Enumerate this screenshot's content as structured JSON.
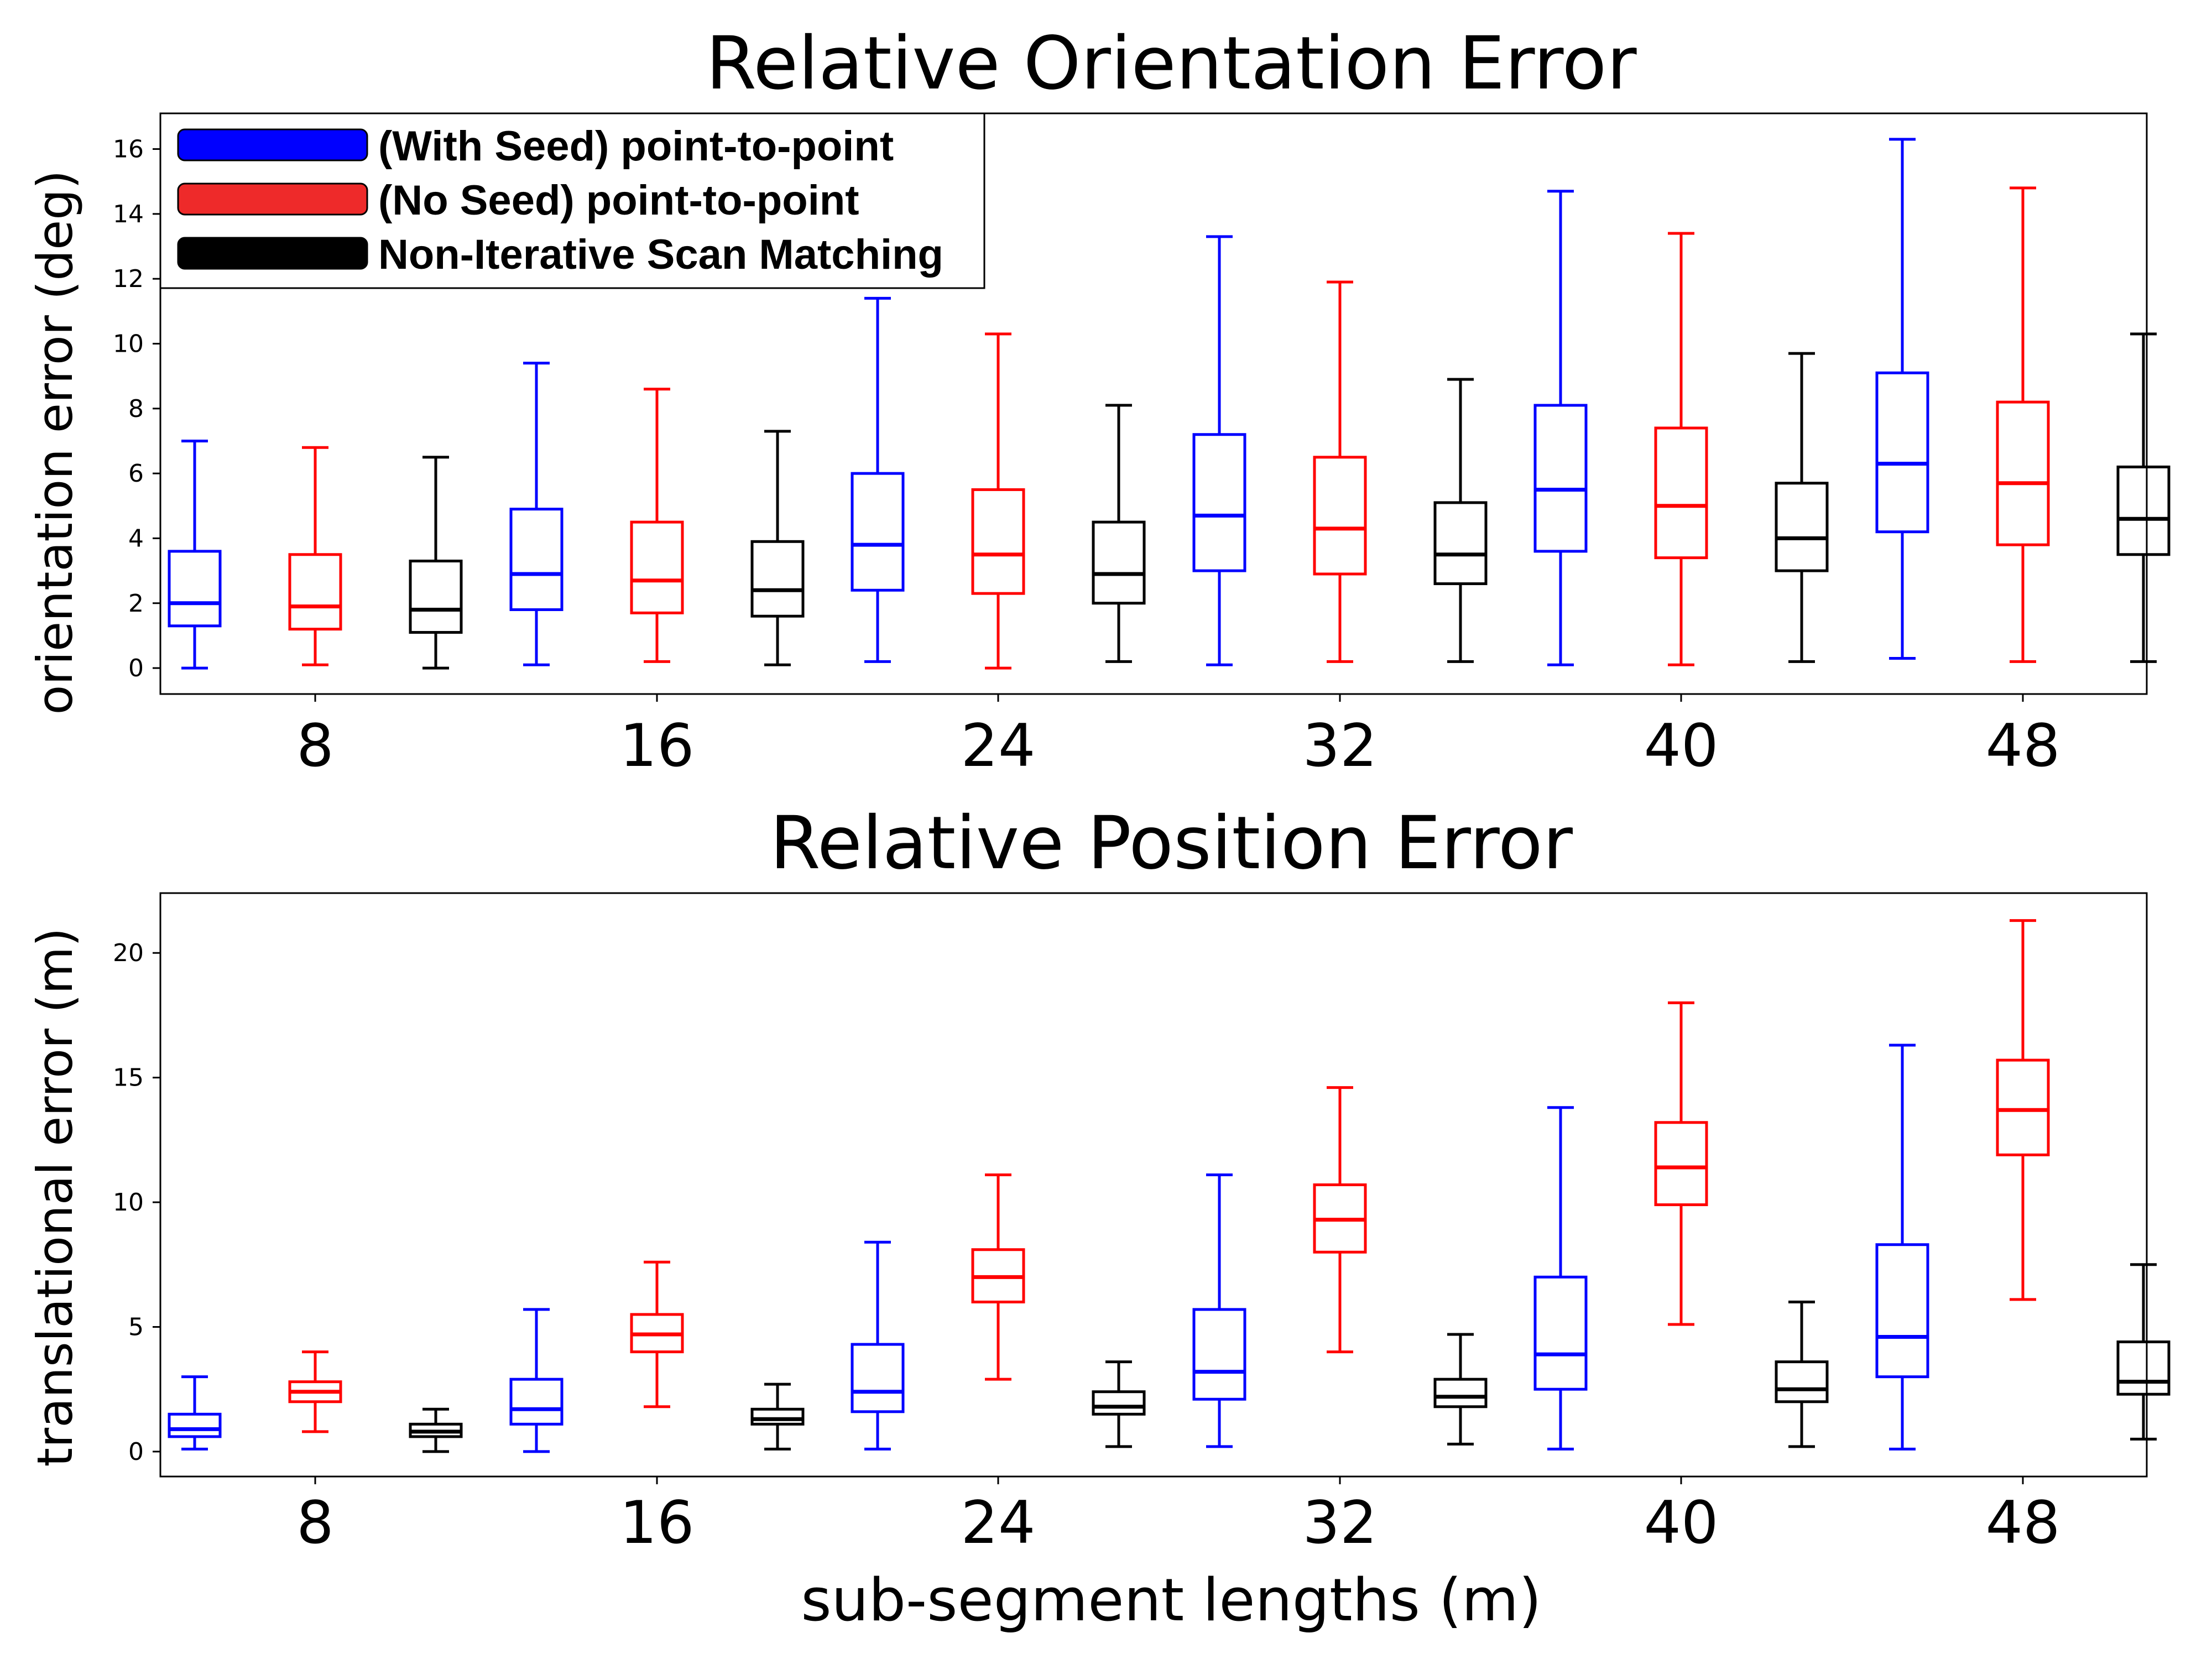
{
  "chart_data": [
    {
      "type": "box",
      "title": "Relative Orientation Error",
      "ylabel": "orientation error (deg)",
      "xlabel": "",
      "ylim": [
        -0.8,
        17.1
      ],
      "yticks": [
        0,
        2,
        4,
        6,
        8,
        10,
        12,
        14,
        16
      ],
      "categories": [
        "8",
        "16",
        "24",
        "32",
        "40",
        "48"
      ],
      "legend": {
        "placement": "top-left",
        "entries": [
          {
            "label": "(With Seed) point-to-point",
            "color": "#0000ff"
          },
          {
            "label": "(No Seed) point-to-point",
            "color": "#ff0000"
          },
          {
            "label": "Non-Iterative Scan Matching",
            "color": "#000000"
          }
        ]
      },
      "series": [
        {
          "name": "(With Seed) point-to-point",
          "color": "#0000ff",
          "boxes": [
            {
              "min": 0.0,
              "q1": 1.3,
              "median": 2.0,
              "q3": 3.6,
              "max": 7.0
            },
            {
              "min": 0.1,
              "q1": 1.8,
              "median": 2.9,
              "q3": 4.9,
              "max": 9.4
            },
            {
              "min": 0.2,
              "q1": 2.4,
              "median": 3.8,
              "q3": 6.0,
              "max": 11.4
            },
            {
              "min": 0.1,
              "q1": 3.0,
              "median": 4.7,
              "q3": 7.2,
              "max": 13.3
            },
            {
              "min": 0.1,
              "q1": 3.6,
              "median": 5.5,
              "q3": 8.1,
              "max": 14.7
            },
            {
              "min": 0.3,
              "q1": 4.2,
              "median": 6.3,
              "q3": 9.1,
              "max": 16.3
            }
          ]
        },
        {
          "name": "(No Seed) point-to-point",
          "color": "#ff0000",
          "boxes": [
            {
              "min": 0.1,
              "q1": 1.2,
              "median": 1.9,
              "q3": 3.5,
              "max": 6.8
            },
            {
              "min": 0.2,
              "q1": 1.7,
              "median": 2.7,
              "q3": 4.5,
              "max": 8.6
            },
            {
              "min": 0.0,
              "q1": 2.3,
              "median": 3.5,
              "q3": 5.5,
              "max": 10.3
            },
            {
              "min": 0.2,
              "q1": 2.9,
              "median": 4.3,
              "q3": 6.5,
              "max": 11.9
            },
            {
              "min": 0.1,
              "q1": 3.4,
              "median": 5.0,
              "q3": 7.4,
              "max": 13.4
            },
            {
              "min": 0.2,
              "q1": 3.8,
              "median": 5.7,
              "q3": 8.2,
              "max": 14.8
            }
          ]
        },
        {
          "name": "Non-Iterative Scan Matching",
          "color": "#000000",
          "boxes": [
            {
              "min": 0.0,
              "q1": 1.1,
              "median": 1.8,
              "q3": 3.3,
              "max": 6.5
            },
            {
              "min": 0.1,
              "q1": 1.6,
              "median": 2.4,
              "q3": 3.9,
              "max": 7.3
            },
            {
              "min": 0.2,
              "q1": 2.0,
              "median": 2.9,
              "q3": 4.5,
              "max": 8.1
            },
            {
              "min": 0.2,
              "q1": 2.6,
              "median": 3.5,
              "q3": 5.1,
              "max": 8.9
            },
            {
              "min": 0.2,
              "q1": 3.0,
              "median": 4.0,
              "q3": 5.7,
              "max": 9.7
            },
            {
              "min": 0.2,
              "q1": 3.5,
              "median": 4.6,
              "q3": 6.2,
              "max": 10.3
            }
          ]
        }
      ]
    },
    {
      "type": "box",
      "title": "Relative Position Error",
      "ylabel": "translational error (m)",
      "xlabel": "sub-segment lengths (m)",
      "ylim": [
        -1.0,
        22.4
      ],
      "yticks": [
        0,
        5,
        10,
        15,
        20
      ],
      "categories": [
        "8",
        "16",
        "24",
        "32",
        "40",
        "48"
      ],
      "series": [
        {
          "name": "(With Seed) point-to-point",
          "color": "#0000ff",
          "boxes": [
            {
              "min": 0.1,
              "q1": 0.6,
              "median": 0.9,
              "q3": 1.5,
              "max": 3.0
            },
            {
              "min": 0.0,
              "q1": 1.1,
              "median": 1.7,
              "q3": 2.9,
              "max": 5.7
            },
            {
              "min": 0.1,
              "q1": 1.6,
              "median": 2.4,
              "q3": 4.3,
              "max": 8.4
            },
            {
              "min": 0.2,
              "q1": 2.1,
              "median": 3.2,
              "q3": 5.7,
              "max": 11.1
            },
            {
              "min": 0.1,
              "q1": 2.5,
              "median": 3.9,
              "q3": 7.0,
              "max": 13.8
            },
            {
              "min": 0.1,
              "q1": 3.0,
              "median": 4.6,
              "q3": 8.3,
              "max": 16.3
            }
          ]
        },
        {
          "name": "(No Seed) point-to-point",
          "color": "#ff0000",
          "boxes": [
            {
              "min": 0.8,
              "q1": 2.0,
              "median": 2.4,
              "q3": 2.8,
              "max": 4.0
            },
            {
              "min": 1.8,
              "q1": 4.0,
              "median": 4.7,
              "q3": 5.5,
              "max": 7.6
            },
            {
              "min": 2.9,
              "q1": 6.0,
              "median": 7.0,
              "q3": 8.1,
              "max": 11.1
            },
            {
              "min": 4.0,
              "q1": 8.0,
              "median": 9.3,
              "q3": 10.7,
              "max": 14.6
            },
            {
              "min": 5.1,
              "q1": 9.9,
              "median": 11.4,
              "q3": 13.2,
              "max": 18.0
            },
            {
              "min": 6.1,
              "q1": 11.9,
              "median": 13.7,
              "q3": 15.7,
              "max": 21.3
            }
          ]
        },
        {
          "name": "Non-Iterative Scan Matching",
          "color": "#000000",
          "boxes": [
            {
              "min": 0.0,
              "q1": 0.6,
              "median": 0.8,
              "q3": 1.1,
              "max": 1.7
            },
            {
              "min": 0.1,
              "q1": 1.1,
              "median": 1.3,
              "q3": 1.7,
              "max": 2.7
            },
            {
              "min": 0.2,
              "q1": 1.5,
              "median": 1.8,
              "q3": 2.4,
              "max": 3.6
            },
            {
              "min": 0.3,
              "q1": 1.8,
              "median": 2.2,
              "q3": 2.9,
              "max": 4.7
            },
            {
              "min": 0.2,
              "q1": 2.0,
              "median": 2.5,
              "q3": 3.6,
              "max": 6.0
            },
            {
              "min": 0.5,
              "q1": 2.3,
              "median": 2.8,
              "q3": 4.4,
              "max": 7.5
            }
          ]
        }
      ]
    }
  ]
}
